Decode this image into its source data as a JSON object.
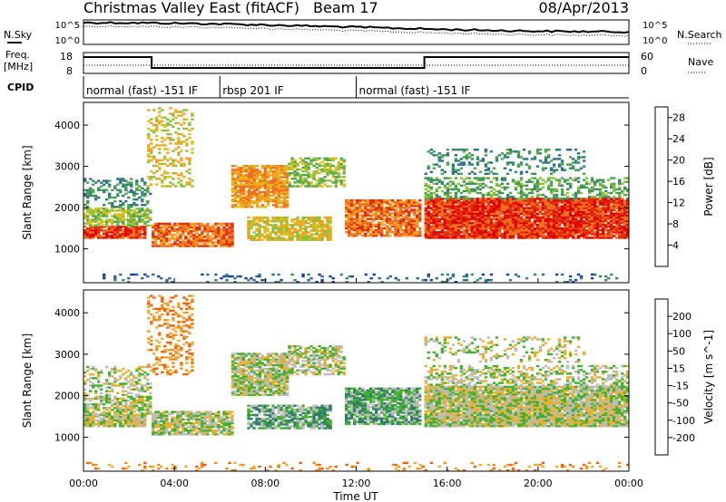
{
  "header": {
    "title": "Christmas Valley East (fitACF)",
    "beam": "Beam 17",
    "date": "08/Apr/2013"
  },
  "side_labels": {
    "nsky": "N.Sky",
    "nsearch": "N.Search",
    "freq": "Freq.",
    "freq_unit": "[MHz]",
    "nave": "Nave",
    "cpid": "CPID"
  },
  "strip_ticks": {
    "noise_left": [
      "10^5",
      "10^0"
    ],
    "noise_right": [
      "10^5",
      "10^0"
    ],
    "freq_left": [
      "18",
      "8"
    ],
    "nave_right": [
      "60",
      "0"
    ]
  },
  "cpid_segments": [
    {
      "label": "normal (fast) -151 IF",
      "start_h": 0,
      "end_h": 6
    },
    {
      "label": "rbsp 201 IF",
      "start_h": 6,
      "end_h": 12
    },
    {
      "label": "normal (fast) -151 IF",
      "start_h": 12,
      "end_h": 24
    }
  ],
  "chart_data": [
    {
      "type": "heatmap",
      "panel": "power",
      "ylabel": "Slant Range [km]",
      "xlabel": "Time UT",
      "x_ticks": [
        "00:00",
        "04:00",
        "08:00",
        "12:00",
        "16:00",
        "20:00",
        "00:00"
      ],
      "xlim_hours": [
        0,
        24
      ],
      "y_ticks": [
        1000,
        2000,
        3000,
        4000
      ],
      "ylim": [
        180,
        4550
      ],
      "colorbar": {
        "label": "Power [dB]",
        "ticks": [
          4,
          8,
          12,
          16,
          20,
          24,
          28
        ],
        "range": [
          0,
          30
        ],
        "colors": [
          "#1010e0",
          "#2040a0",
          "#2f6f8f",
          "#3b8a6a",
          "#4fa84f",
          "#8fbf3f",
          "#d8c020",
          "#f5a020",
          "#f07020",
          "#e03010",
          "#e00000"
        ]
      }
    },
    {
      "type": "heatmap",
      "panel": "velocity",
      "ylabel": "Slant Range [km]",
      "xlabel": "Time UT",
      "x_ticks": [
        "00:00",
        "04:00",
        "08:00",
        "12:00",
        "16:00",
        "20:00",
        "00:00"
      ],
      "xlim_hours": [
        0,
        24
      ],
      "y_ticks": [
        1000,
        2000,
        3000,
        4000
      ],
      "ylim": [
        180,
        4550
      ],
      "colorbar": {
        "label": "Velocity [m s^-1]",
        "ticks": [
          200,
          100,
          50,
          15,
          -15,
          -50,
          -100,
          -200
        ],
        "colors": [
          "#1a1ab0",
          "#2b5fa0",
          "#2e7f6a",
          "#44b030",
          "#bcbcbc",
          "#e8b030",
          "#f09020",
          "#f06010",
          "#e01010"
        ]
      }
    }
  ],
  "bands": [
    {
      "h0": 0.0,
      "h1": 2.7,
      "r0": 1250,
      "r1": 1550,
      "power_level": 9,
      "vel_level": 4,
      "density": 0.9
    },
    {
      "h0": 0.0,
      "h1": 2.9,
      "r0": 1550,
      "r1": 2000,
      "power_level": 5,
      "vel_level": 4,
      "density": 0.7
    },
    {
      "h0": 0.0,
      "h1": 3.0,
      "r0": 2000,
      "r1": 2700,
      "power_level": 3,
      "vel_level": 4,
      "density": 0.35
    },
    {
      "h0": 3.0,
      "h1": 6.5,
      "r0": 1050,
      "r1": 1600,
      "power_level": 8,
      "vel_level": 4,
      "density": 0.8
    },
    {
      "h0": 6.5,
      "h1": 9.0,
      "r0": 2000,
      "r1": 3000,
      "power_level": 7,
      "vel_level": 4,
      "density": 0.85
    },
    {
      "h0": 9.0,
      "h1": 11.5,
      "r0": 2500,
      "r1": 3200,
      "power_level": 5,
      "vel_level": 4,
      "density": 0.6
    },
    {
      "h0": 7.2,
      "h1": 10.8,
      "r0": 1200,
      "r1": 1750,
      "power_level": 6,
      "vel_level": 3,
      "density": 0.75
    },
    {
      "h0": 11.5,
      "h1": 14.8,
      "r0": 1300,
      "r1": 2200,
      "power_level": 8,
      "vel_level": 3,
      "density": 0.85
    },
    {
      "h0": 15.0,
      "h1": 24.0,
      "r0": 1250,
      "r1": 2200,
      "power_level": 9,
      "vel_level": 4,
      "density": 0.95
    },
    {
      "h0": 15.0,
      "h1": 24.0,
      "r0": 2200,
      "r1": 2700,
      "power_level": 4,
      "vel_level": 4,
      "density": 0.45
    },
    {
      "h0": 15.0,
      "h1": 22.0,
      "r0": 2800,
      "r1": 3400,
      "power_level": 3,
      "vel_level": 4,
      "density": 0.25
    },
    {
      "h0": 2.8,
      "h1": 4.8,
      "r0": 2500,
      "r1": 4400,
      "power_level": 6,
      "vel_level": 6,
      "density": 0.3
    },
    {
      "h0": 0.0,
      "h1": 24.0,
      "r0": 180,
      "r1": 400,
      "power_level": 2,
      "vel_level": 6,
      "density": 0.15
    }
  ]
}
